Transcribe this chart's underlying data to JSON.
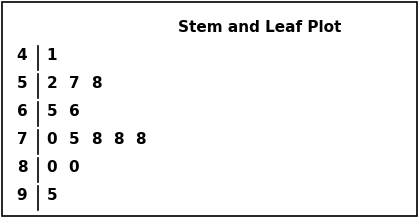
{
  "title": "Stem and Leaf Plot",
  "rows": [
    {
      "stem": "4",
      "leaves": [
        "1"
      ]
    },
    {
      "stem": "5",
      "leaves": [
        "2",
        "7",
        "8"
      ]
    },
    {
      "stem": "6",
      "leaves": [
        "5",
        "6"
      ]
    },
    {
      "stem": "7",
      "leaves": [
        "0",
        "5",
        "8",
        "8",
        "8"
      ]
    },
    {
      "stem": "8",
      "leaves": [
        "0",
        "0"
      ]
    },
    {
      "stem": "9",
      "leaves": [
        "5"
      ]
    }
  ],
  "title_fontsize": 11,
  "data_fontsize": 11,
  "bg_color": "#ffffff",
  "border_color": "#000000",
  "text_color": "#000000",
  "figsize": [
    4.19,
    2.18
  ],
  "dpi": 100
}
